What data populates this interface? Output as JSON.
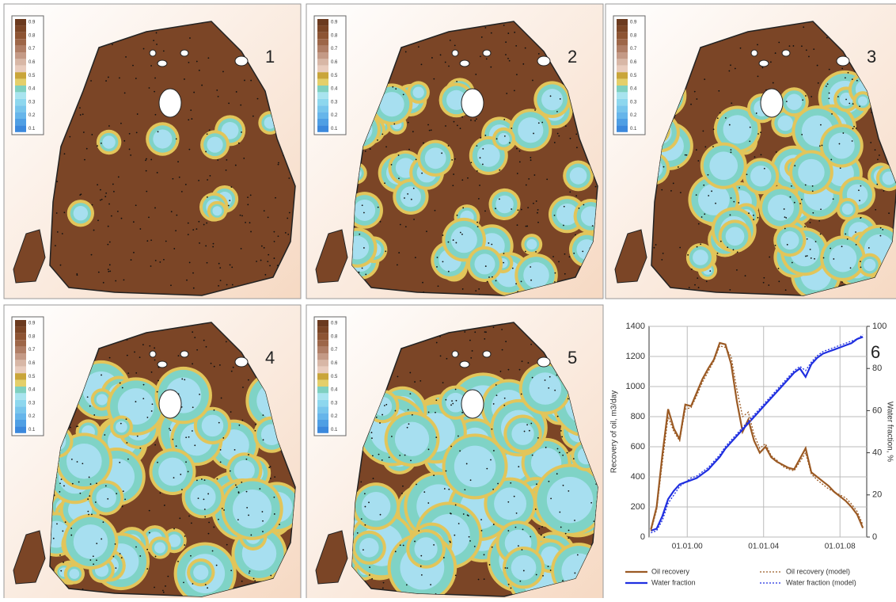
{
  "maps": [
    {
      "label": "1"
    },
    {
      "label": "2"
    },
    {
      "label": "3"
    },
    {
      "label": "4"
    },
    {
      "label": "5"
    }
  ],
  "map_legend_labels": [
    "0.9",
    "0.8",
    "0.7",
    "0.6",
    "0.5",
    "0.4",
    "0.3",
    "0.2",
    "0.1"
  ],
  "chart_data": {
    "type": "line",
    "panel_label": "6",
    "ylabel": "Recovery of oil, m3/day",
    "y2label": "Water fraction, %",
    "x": [
      1998.1,
      1998.4,
      1998.7,
      1999.0,
      1999.3,
      1999.6,
      1999.9,
      2000.2,
      2000.5,
      2000.8,
      2001.1,
      2001.4,
      2001.7,
      2002.0,
      2002.3,
      2002.6,
      2002.9,
      2003.2,
      2003.5,
      2003.8,
      2004.1,
      2004.4,
      2004.7,
      2005.0,
      2005.3,
      2005.6,
      2005.9,
      2006.2,
      2006.5,
      2006.8,
      2007.1,
      2007.4,
      2007.7,
      2008.0,
      2008.3,
      2008.6,
      2008.9,
      2009.2
    ],
    "xlim": [
      1998,
      2009.4
    ],
    "xticks": [
      {
        "value": 2000,
        "label": "01.01.00"
      },
      {
        "value": 2004,
        "label": "01.01.04"
      },
      {
        "value": 2008,
        "label": "01.01.08"
      }
    ],
    "ylim": [
      0,
      1400
    ],
    "yticks": [
      0,
      200,
      400,
      600,
      800,
      1000,
      1200,
      1400
    ],
    "y2lim": [
      0,
      100
    ],
    "y2ticks": [
      0,
      20,
      40,
      60,
      80,
      100
    ],
    "grid": true,
    "series": [
      {
        "name": "Oil recovery",
        "color": "#9b5a24",
        "style": "solid",
        "values": [
          50,
          200,
          550,
          850,
          720,
          650,
          880,
          870,
          960,
          1050,
          1120,
          1180,
          1290,
          1280,
          1150,
          900,
          700,
          780,
          640,
          560,
          600,
          530,
          500,
          480,
          460,
          450,
          520,
          590,
          430,
          400,
          370,
          340,
          300,
          270,
          240,
          200,
          150,
          60
        ]
      },
      {
        "name": "Water fraction",
        "color": "#1f2fe0",
        "style": "solid",
        "axis": "y2",
        "values": [
          3,
          4,
          10,
          18,
          22,
          25,
          26,
          27,
          28,
          30,
          32,
          35,
          38,
          42,
          45,
          48,
          51,
          54,
          57,
          60,
          63,
          66,
          69,
          72,
          75,
          78,
          80,
          76,
          82,
          85,
          87,
          88,
          89,
          90,
          91,
          92,
          94,
          95
        ]
      },
      {
        "name": "Oil recovery (model)",
        "color": "#9b5a24",
        "style": "dotted",
        "values": [
          40,
          180,
          500,
          800,
          700,
          640,
          850,
          860,
          940,
          1030,
          1100,
          1170,
          1270,
          1260,
          1200,
          980,
          800,
          830,
          680,
          590,
          620,
          540,
          510,
          470,
          450,
          440,
          500,
          560,
          420,
          380,
          350,
          320,
          300,
          280,
          260,
          220,
          170,
          80
        ]
      },
      {
        "name": "Water fraction (model)",
        "color": "#1f2fe0",
        "style": "dotted",
        "axis": "y2",
        "values": [
          2,
          3,
          8,
          16,
          20,
          24,
          26,
          28,
          29,
          31,
          33,
          36,
          39,
          43,
          46,
          49,
          52,
          55,
          58,
          61,
          64,
          67,
          70,
          73,
          76,
          79,
          81,
          79,
          83,
          86,
          88,
          89,
          90,
          91,
          92,
          93,
          94,
          96
        ]
      }
    ]
  }
}
